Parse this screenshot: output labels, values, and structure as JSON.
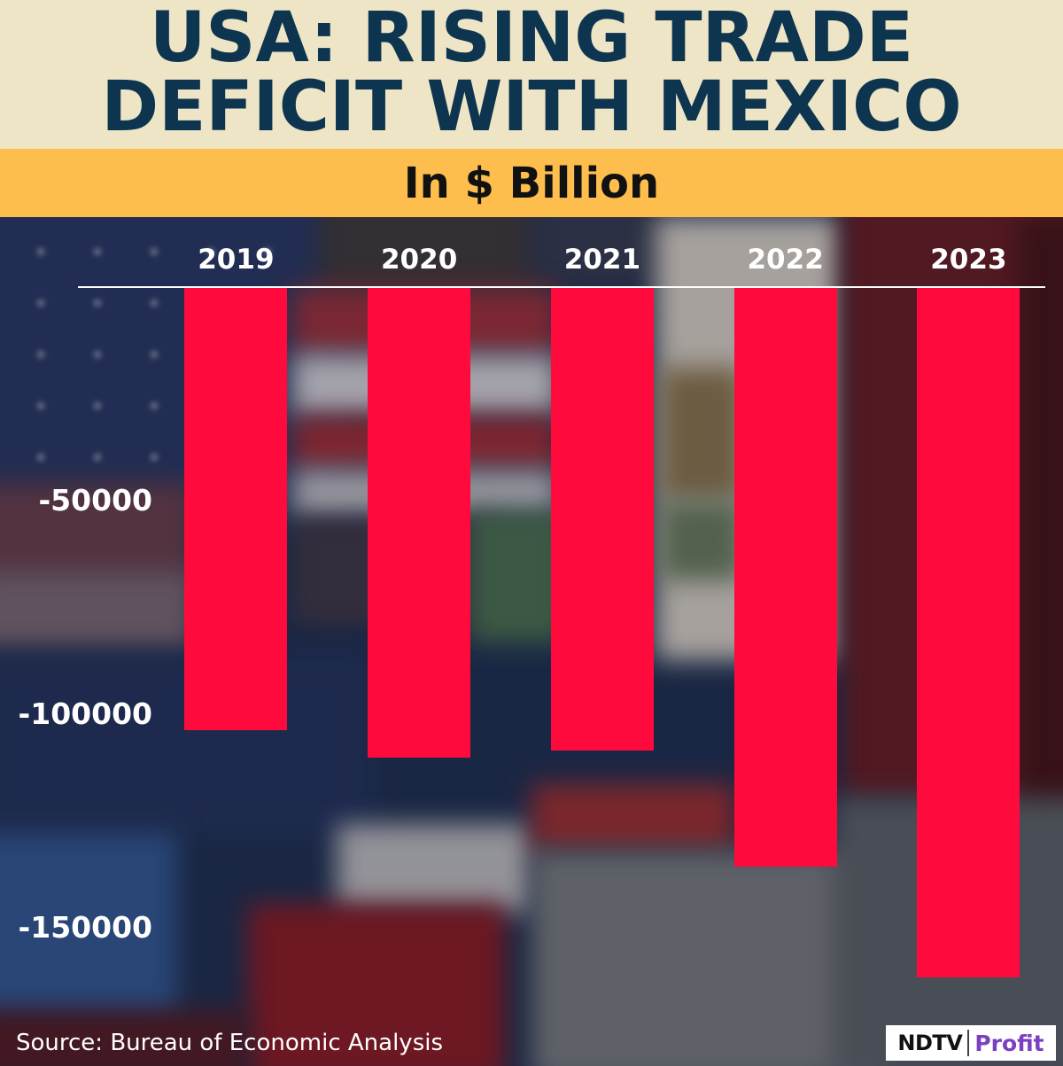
{
  "chart_data": {
    "type": "bar",
    "title": "USA: RISING TRADE DEFICIT WITH MEXICO",
    "subtitle": "In $ Billion",
    "categories": [
      "2019",
      "2020",
      "2021",
      "2022",
      "2023"
    ],
    "values": [
      -103700,
      -110200,
      -108500,
      -135700,
      -161600
    ],
    "ylim": [
      -170000,
      0
    ],
    "yticks": [
      -50000,
      -100000,
      -150000
    ],
    "x_axis_position": "top",
    "grid": false,
    "legend": "none"
  },
  "footer": {
    "source": "Source: Bureau of Economic Analysis"
  },
  "brand": {
    "logo_primary": "NDTV",
    "logo_secondary": "Profit"
  },
  "colors": {
    "bar": "#FF0A3C",
    "title_text": "#0E3550",
    "title_background": "#EDE5C6",
    "subtitle_background": "#FDBE4D",
    "subtitle_text": "#111111",
    "chart_text": "#FFFFFF",
    "brand_accent": "#7B3FC0"
  }
}
